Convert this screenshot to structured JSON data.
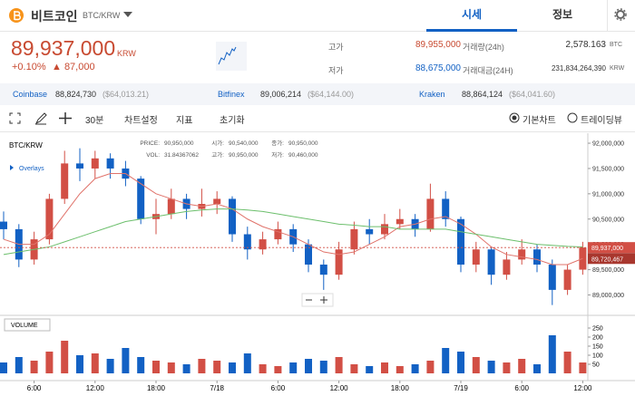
{
  "header": {
    "coin": "비트코인",
    "pair": "BTC/KRW",
    "tabs": [
      "시세",
      "정보"
    ]
  },
  "ticker": {
    "price": "89,937,000",
    "currency": "KRW",
    "change_rate": "+0.10%",
    "change": "▲ 87,000",
    "stats": [
      {
        "label": "고가",
        "value": "89,955,000"
      },
      {
        "label": "저가",
        "value": "88,675,000"
      },
      {
        "label": "거래량(24h)",
        "value": "2,578.163",
        "unit": "BTC"
      },
      {
        "label": "거래대금(24H)",
        "value": "231,834,264,390",
        "unit": "KRW"
      }
    ]
  },
  "exchanges": [
    {
      "name": "Coinbase",
      "price": "88,824,730",
      "usd": "($64,013.21)"
    },
    {
      "name": "Bitfinex",
      "price": "89,006,214",
      "usd": "($64,144.00)"
    },
    {
      "name": "Kraken",
      "price": "88,864,124",
      "usd": "($64,041.60)"
    }
  ],
  "toolbar": {
    "interval": "30분",
    "items": [
      "차트설정",
      "지표",
      "초기화"
    ],
    "chart_modes": [
      "기본차트",
      "트레이딩뷰"
    ]
  },
  "chart_info": {
    "pair": "BTC/KRW",
    "overlays": "Overlays",
    "fields": [
      {
        "label": "PRICE:",
        "value": "90,950,000"
      },
      {
        "label": "시가:",
        "value": "90,540,000"
      },
      {
        "label": "종가:",
        "value": "90,950,000"
      },
      {
        "label": "VOL:",
        "value": "31.84367062"
      },
      {
        "label": "고가:",
        "value": "90,950,000"
      },
      {
        "label": "저가:",
        "value": "90,460,000"
      }
    ],
    "volume_title": "VOLUME"
  },
  "chart": {
    "type": "candlestick",
    "up_color": "#d24f45",
    "down_color": "#1261c4",
    "times": [
      null,
      null,
      "6:00",
      null,
      null,
      null,
      "12:00",
      null,
      null,
      null,
      "18:00",
      null,
      null,
      null,
      "7/18",
      null,
      null,
      null,
      "6:00",
      null,
      null,
      null,
      "12:00",
      null,
      null,
      null,
      "18:00",
      null,
      null,
      null,
      "7/19",
      null,
      null,
      null,
      "6:00",
      null,
      null,
      null,
      "12:00"
    ],
    "candles": [
      [
        90450000,
        90650000,
        90100000,
        90300000
      ],
      [
        90300000,
        90400000,
        89550000,
        89700000
      ],
      [
        89700000,
        90250000,
        89600000,
        90100000
      ],
      [
        90100000,
        91000000,
        90000000,
        90900000
      ],
      [
        90900000,
        91850000,
        90800000,
        91600000
      ],
      [
        91600000,
        91900000,
        91250000,
        91500000
      ],
      [
        91500000,
        91850000,
        91300000,
        91700000
      ],
      [
        91700000,
        91800000,
        91300000,
        91500000
      ],
      [
        91500000,
        91650000,
        91150000,
        91300000
      ],
      [
        91300000,
        91350000,
        90400000,
        90500000
      ],
      [
        90500000,
        90900000,
        90200000,
        90600000
      ],
      [
        90600000,
        91100000,
        90500000,
        90900000
      ],
      [
        90900000,
        91000000,
        90500000,
        90700000
      ],
      [
        90700000,
        91100000,
        90550000,
        90800000
      ],
      [
        90800000,
        91050000,
        90600000,
        90900000
      ],
      [
        90900000,
        90950000,
        90050000,
        90200000
      ],
      [
        90200000,
        90350000,
        89700000,
        89900000
      ],
      [
        89900000,
        90250000,
        89800000,
        90100000
      ],
      [
        90100000,
        90450000,
        90000000,
        90300000
      ],
      [
        90300000,
        90400000,
        89850000,
        90000000
      ],
      [
        90000000,
        90100000,
        89450000,
        89600000
      ],
      [
        89600000,
        89700000,
        89100000,
        89400000
      ],
      [
        89400000,
        90050000,
        89300000,
        89900000
      ],
      [
        89900000,
        90450000,
        89800000,
        90300000
      ],
      [
        90300000,
        90500000,
        90000000,
        90200000
      ],
      [
        90200000,
        90600000,
        90100000,
        90400000
      ],
      [
        90400000,
        90700000,
        90300000,
        90500000
      ],
      [
        90500000,
        90600000,
        90150000,
        90300000
      ],
      [
        90300000,
        91200000,
        90250000,
        90900000
      ],
      [
        90900000,
        91050000,
        90350000,
        90500000
      ],
      [
        90500000,
        90550000,
        89450000,
        89600000
      ],
      [
        89600000,
        90050000,
        89450000,
        89900000
      ],
      [
        89900000,
        89950000,
        89200000,
        89400000
      ],
      [
        89400000,
        89850000,
        89300000,
        89700000
      ],
      [
        89700000,
        90100000,
        89600000,
        89900000
      ],
      [
        89900000,
        90000000,
        89450000,
        89600000
      ],
      [
        89600000,
        89700000,
        88800000,
        89100000
      ],
      [
        89100000,
        89600000,
        89000000,
        89500000
      ],
      [
        89500000,
        90050000,
        89400000,
        89937000
      ]
    ],
    "volumes": [
      60,
      90,
      70,
      120,
      180,
      100,
      110,
      80,
      140,
      90,
      70,
      60,
      50,
      80,
      70,
      60,
      110,
      50,
      40,
      60,
      80,
      70,
      90,
      50,
      40,
      60,
      40,
      50,
      70,
      140,
      120,
      90,
      70,
      60,
      80,
      50,
      210,
      120,
      60
    ],
    "ma": [
      {
        "color": "#e0736b",
        "end_label": "89,720,467",
        "values": [
          90100000,
          90000000,
          90000000,
          90200000,
          90600000,
          91000000,
          91300000,
          91400000,
          91400000,
          91200000,
          91000000,
          90900000,
          90800000,
          90750000,
          90800000,
          90700000,
          90500000,
          90350000,
          90250000,
          90150000,
          90000000,
          89850000,
          89800000,
          89850000,
          90000000,
          90150000,
          90350000,
          90400000,
          90500000,
          90550000,
          90400000,
          90200000,
          89950000,
          89800000,
          89750000,
          89700000,
          89600000,
          89600000,
          89720467
        ]
      },
      {
        "color": "#6cbf6c",
        "values": [
          89800000,
          89850000,
          89900000,
          89950000,
          90050000,
          90150000,
          90250000,
          90350000,
          90450000,
          90500000,
          90550000,
          90600000,
          90650000,
          90680000,
          90700000,
          90700000,
          90680000,
          90650000,
          90600000,
          90550000,
          90500000,
          90450000,
          90400000,
          90380000,
          90350000,
          90350000,
          90300000,
          90300000,
          90300000,
          90300000,
          90250000,
          90200000,
          90150000,
          90100000,
          90050000,
          90000000,
          89980000,
          89960000,
          89950000
        ]
      }
    ],
    "ylim": [
      88650000,
      92180000
    ],
    "yticks": [
      {
        "value": 92000000,
        "label": "92,000,000"
      },
      {
        "value": 91500000,
        "label": "91,500,000"
      },
      {
        "value": 91000000,
        "label": "91,000,000"
      },
      {
        "value": 90500000,
        "label": "90,500,000"
      },
      {
        "value": 90000000,
        "label": "90,000,000"
      },
      {
        "value": 89500000,
        "label": "89,500,000"
      },
      {
        "value": 89000000,
        "label": "89,000,000"
      }
    ],
    "vol_ylim": [
      0,
      300
    ],
    "vol_yticks": [
      50,
      100,
      150,
      200,
      250
    ]
  }
}
